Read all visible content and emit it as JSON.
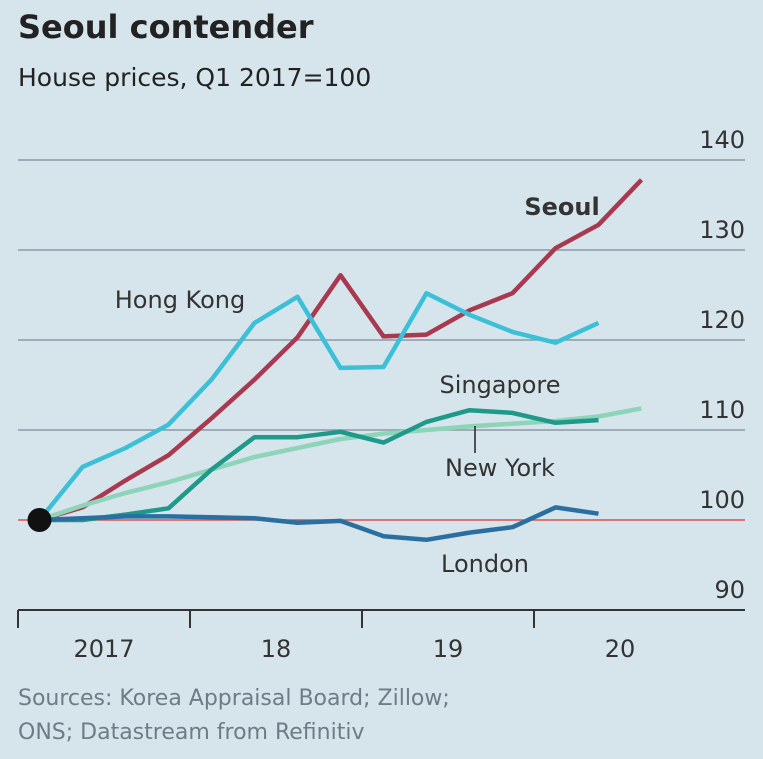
{
  "chart_data": {
    "type": "line",
    "title": "Seoul contender",
    "subtitle": "House prices, Q1 2017=100",
    "x": [
      2017.125,
      2017.375,
      2017.625,
      2017.875,
      2018.125,
      2018.375,
      2018.625,
      2018.875,
      2019.125,
      2019.375,
      2019.625,
      2019.875,
      2020.125,
      2020.375,
      2020.625
    ],
    "series": [
      {
        "name": "Seoul",
        "color": "#a8394f",
        "values": [
          100,
          101.4,
          104.4,
          107.2,
          111.3,
          115.6,
          120.3,
          127.2,
          120.4,
          120.6,
          123.3,
          125.2,
          130.2,
          132.8,
          137.8
        ]
      },
      {
        "name": "Hong Kong",
        "color": "#3cc0d8",
        "values": [
          100,
          105.9,
          108,
          110.6,
          115.6,
          121.9,
          124.8,
          116.9,
          117,
          125.2,
          122.8,
          120.9,
          119.7,
          121.9,
          null
        ]
      },
      {
        "name": "New York",
        "color": "#8dd4b8",
        "values": [
          100,
          101.6,
          103,
          104.2,
          105.6,
          107,
          108,
          109,
          109.6,
          110,
          110.4,
          110.7,
          111,
          111.5,
          112.4
        ]
      },
      {
        "name": "Singapore",
        "color": "#1f9a8a",
        "values": [
          100,
          100,
          100.6,
          101.3,
          105.6,
          109.2,
          109.2,
          109.8,
          108.6,
          110.9,
          112.2,
          111.9,
          110.8,
          111.1,
          null
        ]
      },
      {
        "name": "London",
        "color": "#2a6fa0",
        "values": [
          100,
          100.2,
          100.4,
          100.4,
          100.3,
          100.2,
          99.7,
          99.9,
          98.2,
          97.8,
          98.6,
          99.2,
          101.4,
          100.7,
          null
        ]
      }
    ],
    "xlim": [
      2017,
      2021.25
    ],
    "xticks": [
      {
        "value": 2017.5,
        "label": "2017"
      },
      {
        "value": 2018.5,
        "label": "18"
      },
      {
        "value": 2019.5,
        "label": "19"
      },
      {
        "value": 2020.5,
        "label": "20"
      }
    ],
    "xtick_marks": [
      2017,
      2018,
      2019,
      2020
    ],
    "ylim": [
      90,
      140
    ],
    "yticks": [
      90,
      100,
      110,
      120,
      130,
      140
    ],
    "grid": true,
    "baseline": 100,
    "source": [
      "Sources: Korea Appraisal Board; Zillow;",
      "ONS; Datastream from Refinitiv"
    ]
  }
}
